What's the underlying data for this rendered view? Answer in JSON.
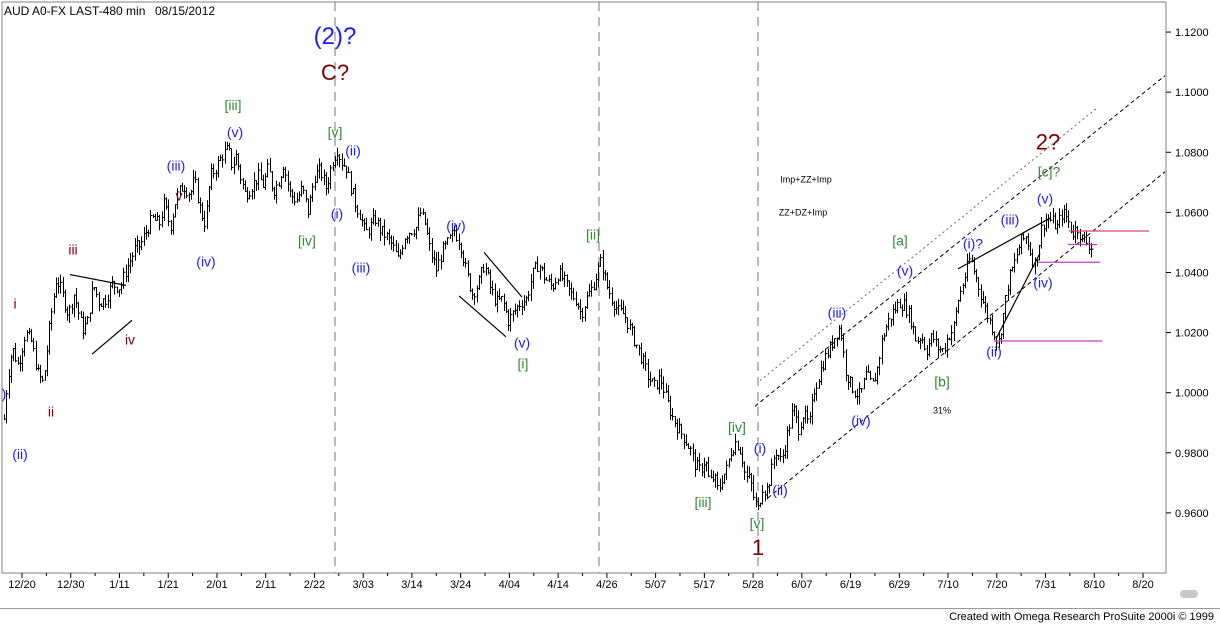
{
  "header": {
    "symbol": "AUD A0-FX LAST-480 min",
    "date": "08/15/2012"
  },
  "footer": {
    "credit": "Created with Omega Research ProSuite 2000i © 1999"
  },
  "chart_data": {
    "type": "ohlc",
    "instrument": "AUD A0-FX",
    "interval": "480 min",
    "x_tick_labels": [
      "12/20",
      "12/30",
      "1/11",
      "1/21",
      "2/01",
      "2/11",
      "2/22",
      "3/03",
      "3/14",
      "3/24",
      "4/04",
      "4/14",
      "4/26",
      "5/07",
      "5/17",
      "5/28",
      "6/07",
      "6/19",
      "6/29",
      "7/10",
      "7/20",
      "7/31",
      "8/10",
      "8/20"
    ],
    "y_tick_labels": [
      "1.1200",
      "1.1000",
      "1.0800",
      "1.0600",
      "1.0400",
      "1.0200",
      "1.0000",
      "0.9800",
      "0.9600"
    ],
    "ylim": [
      0.94,
      1.13
    ],
    "price_path_anchors": [
      [
        0,
        0.99
      ],
      [
        3,
        0.987
      ],
      [
        7,
        1.004
      ],
      [
        12,
        1.015
      ],
      [
        18,
        1.009
      ],
      [
        25,
        1.02
      ],
      [
        31,
        1.017
      ],
      [
        38,
        1.006
      ],
      [
        43,
        1.003
      ],
      [
        50,
        1.024
      ],
      [
        56,
        1.038
      ],
      [
        61,
        1.034
      ],
      [
        68,
        1.026
      ],
      [
        74,
        1.033
      ],
      [
        82,
        1.021
      ],
      [
        87,
        1.023
      ],
      [
        93,
        1.036
      ],
      [
        99,
        1.03
      ],
      [
        105,
        1.031
      ],
      [
        112,
        1.036
      ],
      [
        120,
        1.035
      ],
      [
        125,
        1.04
      ],
      [
        130,
        1.044
      ],
      [
        135,
        1.048
      ],
      [
        140,
        1.049
      ],
      [
        145,
        1.053
      ],
      [
        152,
        1.058
      ],
      [
        159,
        1.056
      ],
      [
        164,
        1.063
      ],
      [
        170,
        1.055
      ],
      [
        176,
        1.065
      ],
      [
        183,
        1.069
      ],
      [
        190,
        1.066
      ],
      [
        194,
        1.071
      ],
      [
        200,
        1.061
      ],
      [
        205,
        1.056
      ],
      [
        210,
        1.072
      ],
      [
        216,
        1.075
      ],
      [
        222,
        1.079
      ],
      [
        228,
        1.081
      ],
      [
        232,
        1.075
      ],
      [
        236,
        1.079
      ],
      [
        240,
        1.072
      ],
      [
        245,
        1.066
      ],
      [
        250,
        1.068
      ],
      [
        258,
        1.072
      ],
      [
        263,
        1.069
      ],
      [
        268,
        1.075
      ],
      [
        273,
        1.067
      ],
      [
        278,
        1.07
      ],
      [
        283,
        1.076
      ],
      [
        290,
        1.066
      ],
      [
        296,
        1.064
      ],
      [
        302,
        1.068
      ],
      [
        308,
        1.06
      ],
      [
        314,
        1.072
      ],
      [
        320,
        1.074
      ],
      [
        326,
        1.068
      ],
      [
        332,
        1.077
      ],
      [
        337,
        1.081
      ],
      [
        341,
        1.077
      ],
      [
        346,
        1.075
      ],
      [
        350,
        1.069
      ],
      [
        355,
        1.063
      ],
      [
        360,
        1.059
      ],
      [
        365,
        1.053
      ],
      [
        370,
        1.055
      ],
      [
        375,
        1.058
      ],
      [
        380,
        1.054
      ],
      [
        386,
        1.052
      ],
      [
        392,
        1.049
      ],
      [
        398,
        1.044
      ],
      [
        404,
        1.052
      ],
      [
        410,
        1.054
      ],
      [
        416,
        1.055
      ],
      [
        420,
        1.06
      ],
      [
        425,
        1.056
      ],
      [
        430,
        1.047
      ],
      [
        436,
        1.041
      ],
      [
        442,
        1.047
      ],
      [
        448,
        1.05
      ],
      [
        454,
        1.054
      ],
      [
        460,
        1.05
      ],
      [
        466,
        1.04
      ],
      [
        472,
        1.033
      ],
      [
        478,
        1.036
      ],
      [
        484,
        1.043
      ],
      [
        490,
        1.035
      ],
      [
        496,
        1.03
      ],
      [
        502,
        1.031
      ],
      [
        508,
        1.024
      ],
      [
        514,
        1.027
      ],
      [
        520,
        1.03
      ],
      [
        526,
        1.031
      ],
      [
        532,
        1.039
      ],
      [
        538,
        1.043
      ],
      [
        545,
        1.038
      ],
      [
        552,
        1.035
      ],
      [
        558,
        1.04
      ],
      [
        564,
        1.037
      ],
      [
        570,
        1.033
      ],
      [
        576,
        1.031
      ],
      [
        581,
        1.026
      ],
      [
        586,
        1.031
      ],
      [
        592,
        1.035
      ],
      [
        597,
        1.04
      ],
      [
        601,
        1.044
      ],
      [
        606,
        1.036
      ],
      [
        612,
        1.031
      ],
      [
        618,
        1.027
      ],
      [
        624,
        1.026
      ],
      [
        630,
        1.021
      ],
      [
        636,
        1.016
      ],
      [
        642,
        1.011
      ],
      [
        648,
        1.005
      ],
      [
        654,
        1.002
      ],
      [
        660,
        1.005
      ],
      [
        666,
        0.998
      ],
      [
        672,
        0.992
      ],
      [
        678,
        0.988
      ],
      [
        684,
        0.985
      ],
      [
        690,
        0.981
      ],
      [
        695,
        0.976
      ],
      [
        700,
        0.974
      ],
      [
        705,
        0.978
      ],
      [
        709,
        0.97
      ],
      [
        714,
        0.972
      ],
      [
        718,
        0.967
      ],
      [
        722,
        0.972
      ],
      [
        726,
        0.974
      ],
      [
        731,
        0.981
      ],
      [
        736,
        0.984
      ],
      [
        741,
        0.98
      ],
      [
        745,
        0.972
      ],
      [
        750,
        0.971
      ],
      [
        754,
        0.964
      ],
      [
        758,
        0.961
      ],
      [
        762,
        0.969
      ],
      [
        766,
        0.967
      ],
      [
        770,
        0.972
      ],
      [
        775,
        0.981
      ],
      [
        781,
        0.977
      ],
      [
        787,
        0.986
      ],
      [
        793,
        0.995
      ],
      [
        798,
        0.988
      ],
      [
        803,
        0.993
      ],
      [
        809,
        0.989
      ],
      [
        814,
        1.001
      ],
      [
        819,
        1.006
      ],
      [
        824,
        1.011
      ],
      [
        830,
        1.015
      ],
      [
        836,
        1.02
      ],
      [
        840,
        1.022
      ],
      [
        845,
        1.008
      ],
      [
        850,
        1.003
      ],
      [
        855,
        1.0
      ],
      [
        860,
        0.999
      ],
      [
        866,
        1.006
      ],
      [
        872,
        1.002
      ],
      [
        877,
        1.008
      ],
      [
        882,
        1.018
      ],
      [
        887,
        1.023
      ],
      [
        893,
        1.027
      ],
      [
        899,
        1.03
      ],
      [
        905,
        1.029
      ],
      [
        911,
        1.024
      ],
      [
        916,
        1.017
      ],
      [
        921,
        1.019
      ],
      [
        926,
        1.014
      ],
      [
        932,
        1.019
      ],
      [
        937,
        1.015
      ],
      [
        943,
        1.014
      ],
      [
        948,
        1.019
      ],
      [
        953,
        1.021
      ],
      [
        958,
        1.031
      ],
      [
        964,
        1.038
      ],
      [
        970,
        1.045
      ],
      [
        976,
        1.038
      ],
      [
        982,
        1.031
      ],
      [
        988,
        1.025
      ],
      [
        994,
        1.02
      ],
      [
        998,
        1.016
      ],
      [
        1003,
        1.026
      ],
      [
        1008,
        1.037
      ],
      [
        1014,
        1.043
      ],
      [
        1020,
        1.05
      ],
      [
        1026,
        1.052
      ],
      [
        1030,
        1.047
      ],
      [
        1034,
        1.042
      ],
      [
        1038,
        1.048
      ],
      [
        1042,
        1.056
      ],
      [
        1047,
        1.058
      ],
      [
        1052,
        1.057
      ],
      [
        1057,
        1.055
      ],
      [
        1062,
        1.06
      ],
      [
        1067,
        1.058
      ],
      [
        1072,
        1.053
      ],
      [
        1077,
        1.055
      ],
      [
        1082,
        1.051
      ],
      [
        1087,
        1.05
      ],
      [
        1092,
        1.048
      ]
    ],
    "wave_labels": [
      {
        "text": "(2)?",
        "color": "#1a1aff",
        "size": 24,
        "at": [
          335,
          1.116
        ]
      },
      {
        "text": "C?",
        "color": "#7a0000",
        "size": 22,
        "at": [
          335,
          1.104
        ]
      },
      {
        "text": "[v]",
        "color": "#2e8b2e",
        "size": 14,
        "at": [
          335,
          1.085
        ]
      },
      {
        "text": "(ii)",
        "color": "#1a1aff",
        "size": 14,
        "at": [
          353,
          1.079
        ]
      },
      {
        "text": "(i)",
        "color": "#1a1aff",
        "size": 14,
        "at": [
          337,
          1.058
        ]
      },
      {
        "text": "[iv]",
        "color": "#2e8b2e",
        "size": 14,
        "at": [
          307,
          1.049
        ]
      },
      {
        "text": "(iii)",
        "color": "#1a1aff",
        "size": 14,
        "at": [
          361,
          1.04
        ]
      },
      {
        "text": "[iii]",
        "color": "#2e8b2e",
        "size": 14,
        "at": [
          233,
          1.094
        ]
      },
      {
        "text": "(v)",
        "color": "#1a1aff",
        "size": 14,
        "at": [
          235,
          1.085
        ]
      },
      {
        "text": "(iii)",
        "color": "#1a1aff",
        "size": 14,
        "at": [
          176,
          1.074
        ]
      },
      {
        "text": "v",
        "color": "#7a0000",
        "size": 14,
        "at": [
          179,
          1.064
        ]
      },
      {
        "text": "(iv)",
        "color": "#1a1aff",
        "size": 14,
        "at": [
          206,
          1.042
        ]
      },
      {
        "text": "iii",
        "color": "#7a0000",
        "size": 14,
        "at": [
          73,
          1.046
        ]
      },
      {
        "text": "i",
        "color": "#7a0000",
        "size": 14,
        "at": [
          15,
          1.028
        ]
      },
      {
        "text": "iv",
        "color": "#7a0000",
        "size": 14,
        "at": [
          130,
          1.016
        ]
      },
      {
        "text": ")",
        "color": "#1a1aff",
        "size": 14,
        "at": [
          4,
          0.998
        ]
      },
      {
        "text": "ii",
        "color": "#7a0000",
        "size": 14,
        "at": [
          51,
          0.992
        ]
      },
      {
        "text": "(ii)",
        "color": "#1a1aff",
        "size": 14,
        "at": [
          20,
          0.978
        ]
      },
      {
        "text": "(iv)",
        "color": "#1a1aff",
        "size": 14,
        "at": [
          456,
          1.054
        ]
      },
      {
        "text": "[ii]",
        "color": "#2e8b2e",
        "size": 14,
        "at": [
          593,
          1.051
        ]
      },
      {
        "text": "(v)",
        "color": "#1a1aff",
        "size": 14,
        "at": [
          522,
          1.015
        ]
      },
      {
        "text": "[i]",
        "color": "#2e8b2e",
        "size": 14,
        "at": [
          523,
          1.008
        ]
      },
      {
        "text": "[iv]",
        "color": "#2e8b2e",
        "size": 14,
        "at": [
          737,
          0.987
        ]
      },
      {
        "text": "(i)",
        "color": "#1a1aff",
        "size": 14,
        "at": [
          760,
          0.98
        ]
      },
      {
        "text": "[iii]",
        "color": "#2e8b2e",
        "size": 14,
        "at": [
          703,
          0.962
        ]
      },
      {
        "text": "(ii)",
        "color": "#1a1aff",
        "size": 14,
        "at": [
          780,
          0.966
        ]
      },
      {
        "text": "[v]",
        "color": "#2e8b2e",
        "size": 14,
        "at": [
          757,
          0.955
        ]
      },
      {
        "text": "1",
        "color": "#7a0000",
        "size": 22,
        "at": [
          758,
          0.946
        ]
      },
      {
        "text": "Imp+ZZ+Imp",
        "color": "#000000",
        "size": 9,
        "at": [
          806,
          1.07
        ]
      },
      {
        "text": "ZZ+DZ+Imp",
        "color": "#000000",
        "size": 9,
        "at": [
          803,
          1.059
        ]
      },
      {
        "text": "(iii)",
        "color": "#1a1aff",
        "size": 14,
        "at": [
          837,
          1.025
        ]
      },
      {
        "text": "[a]",
        "color": "#2e8b2e",
        "size": 14,
        "at": [
          900,
          1.049
        ]
      },
      {
        "text": "(v)",
        "color": "#1a1aff",
        "size": 14,
        "at": [
          905,
          1.039
        ]
      },
      {
        "text": "(iv)",
        "color": "#1a1aff",
        "size": 14,
        "at": [
          861,
          0.989
        ]
      },
      {
        "text": "[b]",
        "color": "#2e8b2e",
        "size": 14,
        "at": [
          942,
          1.002
        ]
      },
      {
        "text": "31%",
        "color": "#000000",
        "size": 9,
        "at": [
          942,
          0.993
        ]
      },
      {
        "text": "(i)?",
        "color": "#1a1aff",
        "size": 14,
        "at": [
          973,
          1.048
        ]
      },
      {
        "text": "(iii)",
        "color": "#1a1aff",
        "size": 14,
        "at": [
          1010,
          1.056
        ]
      },
      {
        "text": "(v)",
        "color": "#1a1aff",
        "size": 14,
        "at": [
          1045,
          1.063
        ]
      },
      {
        "text": "[c]?",
        "color": "#2e8b2e",
        "size": 14,
        "at": [
          1049,
          1.072
        ]
      },
      {
        "text": "2?",
        "color": "#7a0000",
        "size": 22,
        "at": [
          1048,
          1.081
        ]
      },
      {
        "text": "(iv)",
        "color": "#1a1aff",
        "size": 14,
        "at": [
          1043,
          1.035
        ]
      },
      {
        "text": "(ii)",
        "color": "#1a1aff",
        "size": 14,
        "at": [
          994,
          1.012
        ]
      }
    ],
    "vertical_dashed_markers_x": [
      335,
      599,
      758
    ],
    "channel_lines": [
      {
        "from": [
          755,
          0.9955
        ],
        "to": [
          1165,
          1.1055
        ],
        "style": "dashed",
        "color": "#000000"
      },
      {
        "from": [
          768,
          0.965
        ],
        "to": [
          1165,
          1.0735
        ],
        "style": "dashed",
        "color": "#000000"
      },
      {
        "from": [
          760,
          1.004
        ],
        "to": [
          1098,
          1.095
        ],
        "style": "dotted",
        "color": "#6a6a6a"
      }
    ],
    "trend_lines": [
      {
        "from": [
          70,
          1.0393
        ],
        "to": [
          126,
          1.0357
        ],
        "color": "#000000"
      },
      {
        "from": [
          92,
          1.0128
        ],
        "to": [
          132,
          1.0241
        ],
        "color": "#000000"
      },
      {
        "from": [
          459,
          1.0322
        ],
        "to": [
          506,
          1.0186
        ],
        "color": "#000000"
      },
      {
        "from": [
          484,
          1.0467
        ],
        "to": [
          522,
          1.0318
        ],
        "color": "#000000"
      },
      {
        "from": [
          958,
          1.0412
        ],
        "to": [
          1050,
          1.0581
        ],
        "color": "#000000"
      },
      {
        "from": [
          996,
          1.0179
        ],
        "to": [
          1040,
          1.0464
        ],
        "color": "#000000"
      }
    ],
    "horizontal_levels": [
      {
        "from": [
          1069,
          1.0538
        ],
        "to": [
          1149,
          1.0538
        ],
        "color": "#d04a6a"
      },
      {
        "from": [
          1068,
          1.0493
        ],
        "to": [
          1097,
          1.0493
        ],
        "color": "#c040c0"
      },
      {
        "from": [
          1038,
          1.0434
        ],
        "to": [
          1100,
          1.0434
        ],
        "color": "#c040c0"
      },
      {
        "from": [
          994,
          1.0172
        ],
        "to": [
          1102,
          1.0172
        ],
        "color": "#c040c0"
      }
    ]
  }
}
